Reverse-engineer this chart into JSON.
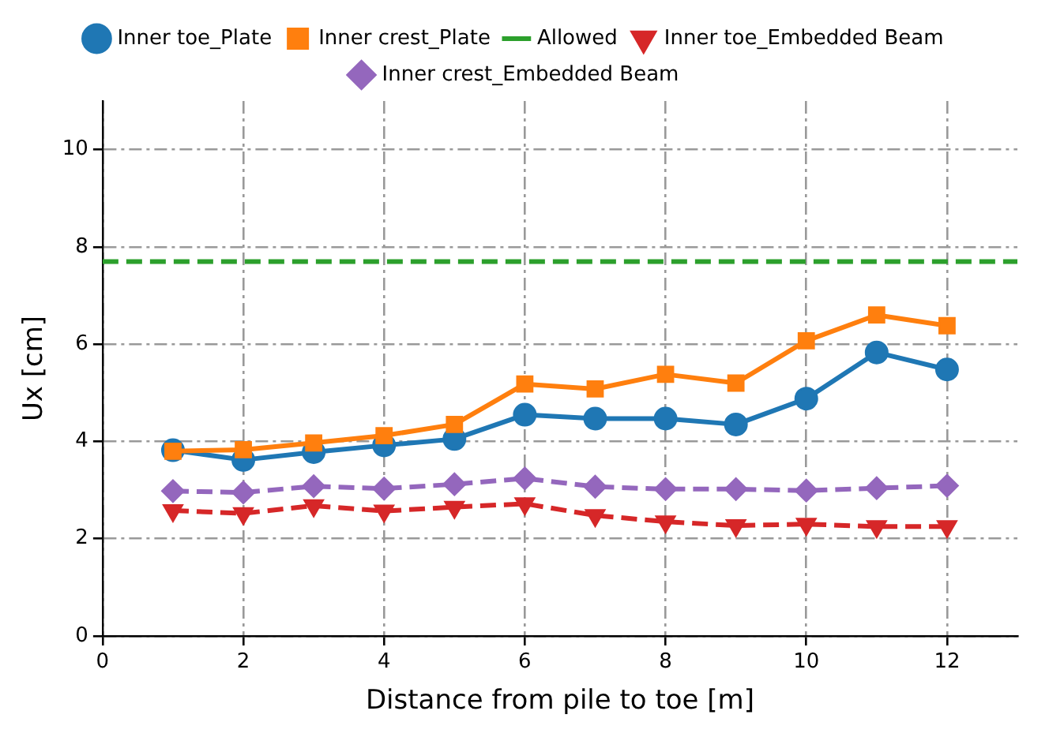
{
  "chart_data": {
    "type": "line",
    "xlabel": "Distance from pile to toe [m]",
    "ylabel": "Ux [cm]",
    "x": [
      1,
      2,
      3,
      4,
      5,
      6,
      7,
      8,
      9,
      10,
      11,
      12
    ],
    "series": [
      {
        "name": "Inner toe_Plate",
        "color": "#1f77b4",
        "marker": "circle",
        "line_style": "solid",
        "values": [
          3.82,
          3.62,
          3.78,
          3.92,
          4.05,
          4.55,
          4.47,
          4.47,
          4.35,
          4.88,
          5.83,
          5.48
        ]
      },
      {
        "name": "Inner crest_Plate",
        "color": "#ff7f0e",
        "marker": "square",
        "line_style": "solid",
        "values": [
          3.8,
          3.83,
          3.97,
          4.12,
          4.35,
          5.18,
          5.08,
          5.38,
          5.2,
          6.07,
          6.6,
          6.38
        ]
      },
      {
        "name": "Allowed",
        "color": "#2ca02c",
        "marker": "none",
        "line_style": "dashed",
        "x": [
          0,
          13
        ],
        "values": [
          7.7,
          7.7
        ]
      },
      {
        "name": "Inner toe_Embedded Beam",
        "color": "#d62728",
        "marker": "triangle",
        "line_style": "dashed",
        "values": [
          2.58,
          2.52,
          2.68,
          2.57,
          2.65,
          2.72,
          2.48,
          2.35,
          2.27,
          2.3,
          2.25,
          2.25
        ]
      },
      {
        "name": "Inner crest_Embedded Beam",
        "color": "#9467bd",
        "marker": "diamond",
        "line_style": "dashed",
        "values": [
          2.98,
          2.95,
          3.08,
          3.03,
          3.12,
          3.24,
          3.07,
          3.02,
          3.02,
          2.99,
          3.04,
          3.09
        ]
      }
    ],
    "xlim": [
      0,
      13
    ],
    "xticks": [
      0,
      2,
      4,
      6,
      8,
      10,
      12
    ],
    "ylim": [
      0,
      11
    ],
    "yticks": [
      0,
      2,
      4,
      6,
      8,
      10
    ],
    "grid": true,
    "legend": "top"
  }
}
